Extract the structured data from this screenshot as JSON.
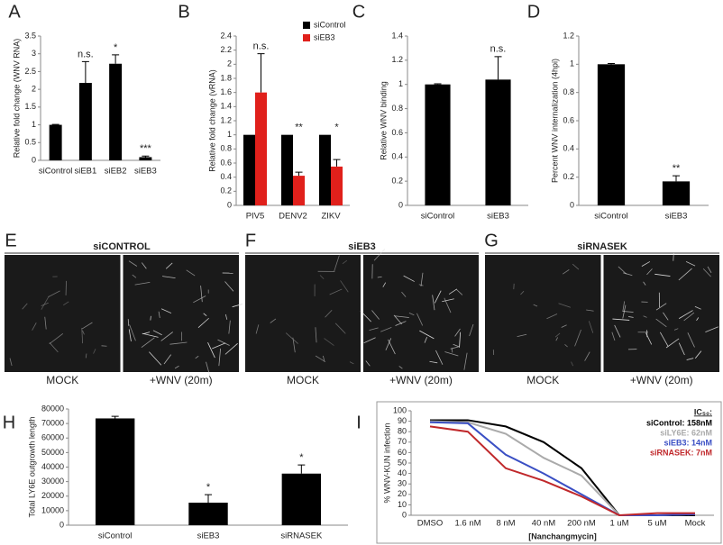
{
  "chart_data": [
    {
      "type": "bar",
      "panel": "A",
      "ylabel": "Relative fold change (WNV RNA)",
      "categories": [
        "siControl",
        "siEB1",
        "siEB2",
        "siEB3"
      ],
      "values": [
        1,
        2.18,
        2.72,
        0.09
      ],
      "errors": [
        0.01,
        0.6,
        0.25,
        0.03
      ],
      "color": "#000000",
      "annotations": [
        null,
        "n.s.",
        "*",
        "***"
      ],
      "ylim": [
        0,
        3.5
      ],
      "yticks": [
        0,
        0.5,
        1,
        1.5,
        2,
        2.5,
        3,
        3.5
      ]
    },
    {
      "type": "bar",
      "panel": "B",
      "ylabel": "Relative fold change (vRNA)",
      "categories": [
        "PIV5",
        "DENV2",
        "ZIKV"
      ],
      "series": [
        {
          "name": "siControl",
          "color": "#000000",
          "values": [
            1,
            1,
            1
          ]
        },
        {
          "name": "siEB3",
          "color": "#e0201b",
          "values": [
            1.6,
            0.42,
            0.55
          ],
          "errors": [
            0.55,
            0.05,
            0.1
          ]
        }
      ],
      "annotations": [
        "n.s.",
        "**",
        "*"
      ],
      "ylim": [
        0,
        2.4
      ],
      "yticks": [
        0,
        0.2,
        0.4,
        0.6,
        0.8,
        1,
        1.2,
        1.4,
        1.6,
        1.8,
        2,
        2.2,
        2.4
      ],
      "legend": "top-right"
    },
    {
      "type": "bar",
      "panel": "C",
      "ylabel": "Relative WNV binding",
      "categories": [
        "siControl",
        "siEB3"
      ],
      "values": [
        1,
        1.04
      ],
      "errors": [
        0.005,
        0.19
      ],
      "color": "#000000",
      "annotations": [
        null,
        "n.s."
      ],
      "ylim": [
        0,
        1.4
      ],
      "yticks": [
        0,
        0.2,
        0.4,
        0.6,
        0.8,
        1,
        1.2,
        1.4
      ]
    },
    {
      "type": "bar",
      "panel": "D",
      "ylabel": "Percent  WNV internalization (4hpi)",
      "categories": [
        "siControl",
        "siEB3"
      ],
      "values": [
        1,
        0.17
      ],
      "errors": [
        0.005,
        0.04
      ],
      "color": "#000000",
      "annotations": [
        null,
        "**"
      ],
      "ylim": [
        0,
        1.2
      ],
      "yticks": [
        0,
        0.2,
        0.4,
        0.6,
        0.8,
        1,
        1.2
      ]
    },
    {
      "type": "image",
      "panel": "E",
      "title": "siCONTROL",
      "captions": [
        "MOCK",
        "+WNV (20m)"
      ]
    },
    {
      "type": "image",
      "panel": "F",
      "title": "siEB3",
      "captions": [
        "MOCK",
        "+WNV (20m)"
      ]
    },
    {
      "type": "image",
      "panel": "G",
      "title": "siRNASEK",
      "captions": [
        "MOCK",
        "+WNV (20m)"
      ]
    },
    {
      "type": "bar",
      "panel": "H",
      "ylabel": "Total LY6E outgrowth length",
      "categories": [
        "siControl",
        "siEB3",
        "siRNASEK"
      ],
      "values": [
        73500,
        15500,
        35500
      ],
      "errors": [
        1500,
        5500,
        6000
      ],
      "color": "#000000",
      "annotations": [
        null,
        "*",
        "*"
      ],
      "ylim": [
        0,
        80000
      ],
      "yticks": [
        0,
        10000,
        20000,
        30000,
        40000,
        50000,
        60000,
        70000,
        80000
      ]
    },
    {
      "type": "line",
      "panel": "I",
      "ylabel": "% WNV-KUN infection",
      "xlabel": "[Nanchangmycin]",
      "legend_title": "IC₅₀:",
      "legend": "top-right",
      "categories": [
        "DMSO",
        "1.6 nM",
        "8 nM",
        "40 nM",
        "200 nM",
        "1 uM",
        "5 uM",
        "Mock"
      ],
      "series": [
        {
          "name": "siControl: 158nM",
          "color": "#000000",
          "values": [
            91,
            91,
            85,
            70,
            45,
            0,
            0,
            0
          ]
        },
        {
          "name": "siLY6E: 62nM",
          "color": "#aaaaaa",
          "values": [
            90,
            89,
            78,
            55,
            38,
            0,
            0,
            1
          ]
        },
        {
          "name": "siEB3: 14nM",
          "color": "#3a4fc4",
          "values": [
            89,
            88,
            58,
            40,
            20,
            0,
            0,
            1
          ]
        },
        {
          "name": "siRNASEK: 7nM",
          "color": "#c0282b",
          "values": [
            85,
            80,
            45,
            33,
            18,
            0,
            2,
            2
          ]
        }
      ],
      "ylim": [
        0,
        100
      ],
      "yticks": [
        0,
        10,
        20,
        30,
        40,
        50,
        60,
        70,
        80,
        90,
        100
      ]
    }
  ]
}
